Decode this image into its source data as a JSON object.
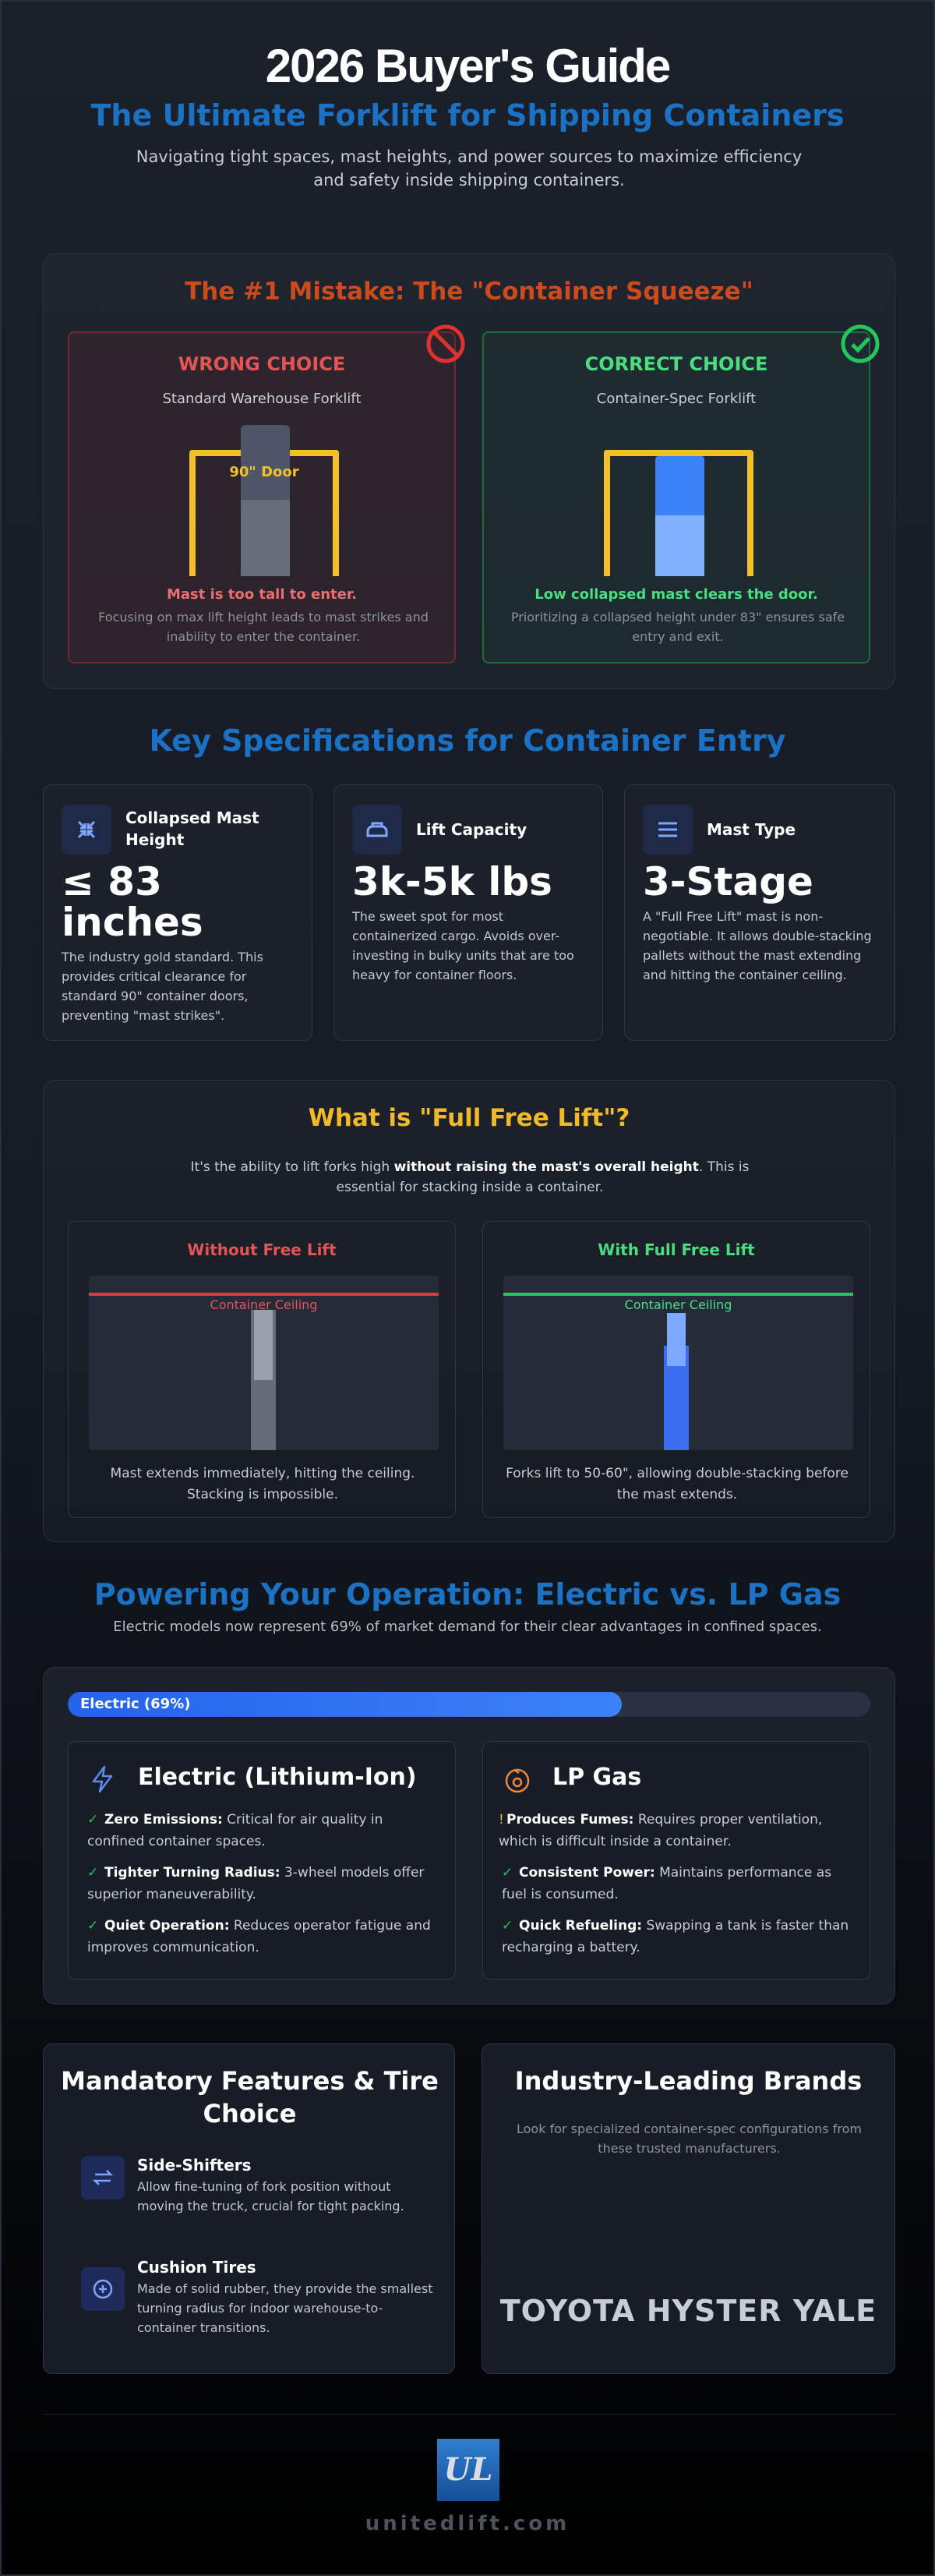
{
  "header": {
    "title": "2026 Buyer's Guide",
    "subtitle": "The Ultimate Forklift for Shipping Containers",
    "description": "Navigating tight spaces, mast heights, and power sources to maximize efficiency and safety inside shipping containers."
  },
  "mistake": {
    "title": "The #1 Mistake: The \"Container Squeeze\"",
    "wrong": {
      "label": "WRONG CHOICE",
      "subtitle": "Standard Warehouse Forklift",
      "door_label": "90\" Door",
      "verdict": "Mast is too tall to enter.",
      "note": "Focusing on max lift height leads to mast strikes and inability to enter the container."
    },
    "correct": {
      "label": "CORRECT CHOICE",
      "subtitle": "Container-Spec Forklift",
      "verdict": "Low collapsed mast clears the door.",
      "note": "Prioritizing a collapsed height under 83\" ensures safe entry and exit."
    }
  },
  "specs": {
    "title": "Key Specifications for Container Entry",
    "cards": [
      {
        "label": "Collapsed Mast Height",
        "value": "≤ 83 inches",
        "note": "The industry gold standard. This provides critical clearance for standard 90\" container doors, preventing \"mast strikes\"."
      },
      {
        "label": "Lift Capacity",
        "value": "3k-5k lbs",
        "note": "The sweet spot for most containerized cargo. Avoids over-investing in bulky units that are too heavy for container floors."
      },
      {
        "label": "Mast Type",
        "value": "3-Stage",
        "note": "A \"Full Free Lift\" mast is non-negotiable. It allows double-stacking pallets without the mast extending and hitting the container ceiling."
      }
    ]
  },
  "free_lift": {
    "title": "What is \"Full Free Lift\"?",
    "intro": [
      "It's the ability to lift forks high ",
      "without raising the mast's overall height",
      ". This is essential for stacking inside a container."
    ],
    "without": {
      "title": "Without Free Lift",
      "ceiling": "Container Ceiling",
      "caption": "Mast extends immediately, hitting the ceiling. Stacking is impossible."
    },
    "with": {
      "title": "With Full Free Lift",
      "ceiling": "Container Ceiling",
      "caption": "Forks lift to 50-60\", allowing double-stacking before the mast extends."
    }
  },
  "power": {
    "title": "Powering Your Operation: Electric vs. LP Gas",
    "subtitle": "Electric models now represent 69% of market demand for their clear advantages in confined spaces.",
    "bar_label": "Electric (69%)",
    "electric_share": 69,
    "options": [
      {
        "name": "Electric (Lithium-Ion)",
        "items": [
          {
            "icon": "✓",
            "bold": "Zero Emissions:",
            "text": " Critical for air quality in confined container spaces."
          },
          {
            "icon": "✓",
            "bold": "Tighter Turning Radius:",
            "text": " 3-wheel models offer superior maneuverability."
          },
          {
            "icon": "✓",
            "bold": "Quiet Operation:",
            "text": " Reduces operator fatigue and improves communication."
          }
        ]
      },
      {
        "name": "LP Gas",
        "items": [
          {
            "icon": "!",
            "bold": "Produces Fumes:",
            "text": " Requires proper ventilation, which is difficult inside a container."
          },
          {
            "icon": "✓",
            "bold": "Consistent Power:",
            "text": " Maintains performance as fuel is consumed."
          },
          {
            "icon": "✓",
            "bold": "Quick Refueling:",
            "text": " Swapping a tank is faster than recharging a battery."
          }
        ]
      }
    ]
  },
  "features": {
    "title": "Mandatory Features & Tire Choice",
    "items": [
      {
        "title": "Side-Shifters",
        "text": "Allow fine-tuning of fork position without moving the truck, crucial for tight packing."
      },
      {
        "title": "Cushion Tires",
        "text": "Made of solid rubber, they provide the smallest turning radius for indoor warehouse-to-container transitions."
      }
    ]
  },
  "brands": {
    "title": "Industry-Leading Brands",
    "description": "Look for specialized container-spec configurations from these trusted manufacturers.",
    "names": [
      "TOYOTA",
      "HYSTER",
      "YALE"
    ]
  },
  "footer": {
    "logo": "UL",
    "domain": "unitedlift.com"
  }
}
